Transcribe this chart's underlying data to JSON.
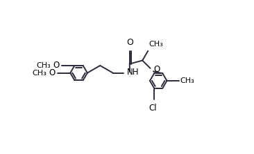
{
  "bg_color": "#ffffff",
  "line_color": "#2a2a3a",
  "text_color": "#000000",
  "line_width": 1.4,
  "dbo": 0.008,
  "figsize": [
    3.66,
    2.23
  ],
  "dpi": 100,
  "xlim": [
    0.0,
    1.0
  ],
  "ylim": [
    0.0,
    0.75
  ]
}
